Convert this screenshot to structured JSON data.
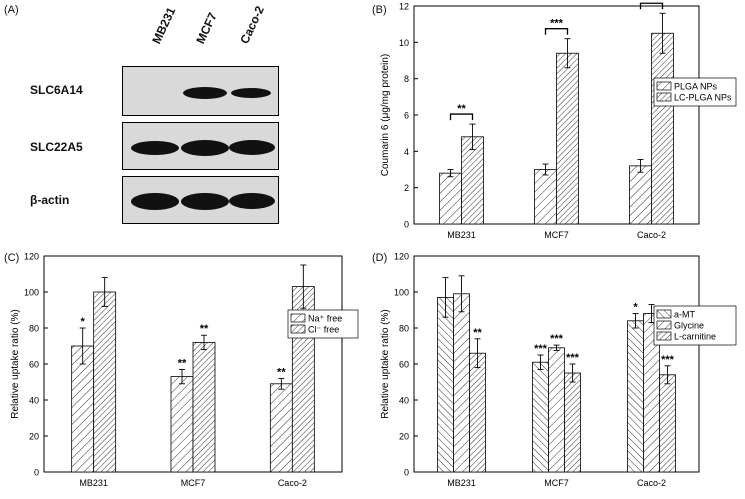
{
  "panelA": {
    "label": "(A)",
    "lanes": [
      "MB231",
      "MCF7",
      "Caco-2"
    ],
    "rows": [
      {
        "name": "SLC6A14",
        "bands": [
          0.0,
          0.9,
          0.75
        ]
      },
      {
        "name": "SLC22A5",
        "bands": [
          0.9,
          1.0,
          0.95
        ]
      },
      {
        "name": "β-actin",
        "bands": [
          1.0,
          1.0,
          0.95
        ]
      }
    ]
  },
  "chart_data": [
    {
      "panel": "(B)",
      "type": "bar",
      "categories": [
        "MB231",
        "MCF7",
        "Caco-2"
      ],
      "ylabel": "Coumarin 6 (μg/mg protein)",
      "xlabel": "",
      "ylim": [
        0,
        12
      ],
      "yticks": [
        0,
        2,
        4,
        6,
        8,
        10,
        12
      ],
      "legend_position": "right",
      "series": [
        {
          "name": "PLGA NPs",
          "values": [
            2.8,
            3.0,
            3.2
          ],
          "errors": [
            0.2,
            0.3,
            0.35
          ],
          "pattern": "hatch-light"
        },
        {
          "name": "LC-PLGA NPs",
          "values": [
            4.8,
            9.4,
            10.5
          ],
          "errors": [
            0.7,
            0.8,
            1.1
          ],
          "pattern": "hatch-dense"
        }
      ],
      "brackets": [
        {
          "category": 0,
          "text": "**"
        },
        {
          "category": 1,
          "text": "***"
        },
        {
          "category": 2,
          "text": "***"
        }
      ]
    },
    {
      "panel": "(C)",
      "type": "bar",
      "categories": [
        "MB231",
        "MCF7",
        "Caco-2"
      ],
      "ylabel": "Relative uptake ratio (%)",
      "xlabel": "",
      "ylim": [
        0,
        120
      ],
      "yticks": [
        0,
        20,
        40,
        60,
        80,
        100,
        120
      ],
      "legend_position": "right",
      "series": [
        {
          "name": "Na⁺ free",
          "values": [
            70,
            53,
            49
          ],
          "errors": [
            10,
            4,
            3
          ],
          "stars": [
            "*",
            "**",
            "**"
          ],
          "pattern": "hatch-light"
        },
        {
          "name": "Cl⁻ free",
          "values": [
            100,
            72,
            103
          ],
          "errors": [
            8,
            4,
            12
          ],
          "stars": [
            "",
            "**",
            ""
          ],
          "pattern": "hatch-dense"
        }
      ]
    },
    {
      "panel": "(D)",
      "type": "bar",
      "categories": [
        "MB231",
        "MCF7",
        "Caco-2"
      ],
      "ylabel": "Relative uptake ratio (%)",
      "xlabel": "",
      "ylim": [
        0,
        120
      ],
      "yticks": [
        0,
        20,
        40,
        60,
        80,
        100,
        120
      ],
      "legend_position": "right",
      "series": [
        {
          "name": "a-MT",
          "values": [
            97,
            61,
            84
          ],
          "errors": [
            11,
            4,
            4
          ],
          "stars": [
            "",
            "***",
            "*"
          ],
          "pattern": "hatch-back"
        },
        {
          "name": "Glycine",
          "values": [
            99,
            69,
            88
          ],
          "errors": [
            10,
            1.5,
            5
          ],
          "stars": [
            "",
            "***",
            ""
          ],
          "pattern": "hatch-light"
        },
        {
          "name": "L-carnitine",
          "values": [
            66,
            55,
            54
          ],
          "errors": [
            8,
            5,
            5
          ],
          "stars": [
            "**",
            "***",
            "***"
          ],
          "pattern": "hatch-dense"
        }
      ]
    }
  ]
}
